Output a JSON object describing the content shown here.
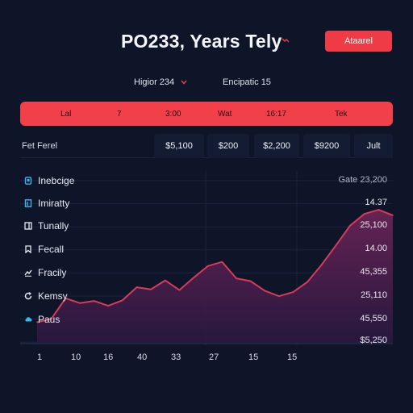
{
  "header": {
    "title": "PO233, Years Tely",
    "action_label": "Ataarel",
    "accent": "#ef3b46"
  },
  "filters": {
    "first_label": "Higior 234",
    "second_label": "Encipatic 15"
  },
  "table_header": {
    "cells": [
      "Lal",
      "7",
      "3:00",
      "Wat",
      "16:17",
      "Tek"
    ]
  },
  "summary_row": {
    "label": "Fet Ferel",
    "values": [
      "$5,100",
      "$200",
      "$2,200",
      "$9200",
      "Jult"
    ]
  },
  "legend": [
    {
      "label": "Inebcige",
      "icon": "file-icon",
      "color": "#38b6f0"
    },
    {
      "label": "Imiratty",
      "icon": "document-icon",
      "color": "#38b6f0"
    },
    {
      "label": "Tunally",
      "icon": "flag-icon",
      "color": "#e8ecf5"
    },
    {
      "label": "Fecall",
      "icon": "bookmark-icon",
      "color": "#e8ecf5"
    },
    {
      "label": "Fracily",
      "icon": "trend-icon",
      "color": "#e8ecf5"
    },
    {
      "label": "Kemsy",
      "icon": "refresh-icon",
      "color": "#e8ecf5"
    },
    {
      "label": "Paus",
      "icon": "cloud-icon",
      "color": "#38b6f0"
    }
  ],
  "chart_data": {
    "type": "area",
    "y_tick_labels": [
      "Gate 23,200",
      "14.37",
      "25,100",
      "14.00",
      "45,355",
      "25,110",
      "45,550",
      "$5,250"
    ],
    "x_tick_labels": [
      "1",
      "10",
      "16",
      "40",
      "33",
      "27",
      "15",
      "15"
    ],
    "series": [
      {
        "color": "#d83a5a",
        "values": [
          3,
          3.5,
          6.5,
          5.8,
          6.1,
          5.4,
          6.2,
          8.1,
          7.8,
          9.1,
          7.7,
          9.5,
          11.2,
          11.8,
          9.4,
          9.0,
          7.6,
          6.8,
          7.4,
          8.9,
          11.4,
          14.2,
          17.1,
          18.8,
          19.4,
          18.6
        ]
      }
    ]
  }
}
